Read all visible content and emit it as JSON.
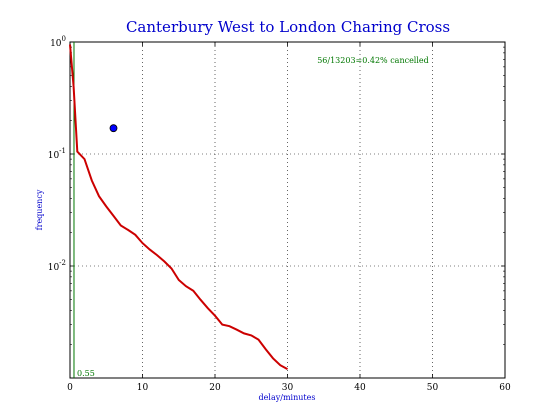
{
  "chart_data": {
    "type": "line",
    "title": "Canterbury West to London Charing Cross",
    "xlabel": "delay/minutes",
    "ylabel": "frequency",
    "xlim": [
      0,
      60
    ],
    "ylim": [
      0.001,
      1
    ],
    "yscale": "log",
    "grid": true,
    "x_ticks": [
      "0",
      "10",
      "20",
      "30",
      "40",
      "50",
      "60"
    ],
    "y_ticks": [
      {
        "base": "10",
        "exp": "0"
      },
      {
        "base": "10",
        "exp": "-1"
      },
      {
        "base": "10",
        "exp": "-2"
      }
    ],
    "annotation": "56/13203=0.42% cancelled",
    "mean_label": "0.55",
    "mean_x": 0.55,
    "marker": {
      "x": 6,
      "y": 0.17
    },
    "series": [
      {
        "color": "#cc0000",
        "x": [
          0,
          0.5,
          1,
          2,
          3,
          4,
          5,
          6,
          7,
          8,
          9,
          10,
          11,
          12,
          13,
          14,
          15,
          16,
          17,
          18,
          19,
          20,
          21,
          22,
          23,
          24,
          25,
          26,
          27,
          28,
          29,
          30
        ],
        "y": [
          0.95,
          0.4,
          0.105,
          0.09,
          0.058,
          0.042,
          0.034,
          0.028,
          0.023,
          0.021,
          0.019,
          0.016,
          0.014,
          0.0125,
          0.011,
          0.0095,
          0.0075,
          0.0066,
          0.006,
          0.005,
          0.0042,
          0.0036,
          0.003,
          0.0029,
          0.0027,
          0.0025,
          0.0024,
          0.0022,
          0.0018,
          0.0015,
          0.0013,
          0.0012
        ]
      }
    ],
    "colors": {
      "title": "#0000cc",
      "labels": "#0000cc",
      "series": "#cc0000",
      "mean": "#007700",
      "annotation": "#007700",
      "marker": "#0000ff"
    }
  }
}
